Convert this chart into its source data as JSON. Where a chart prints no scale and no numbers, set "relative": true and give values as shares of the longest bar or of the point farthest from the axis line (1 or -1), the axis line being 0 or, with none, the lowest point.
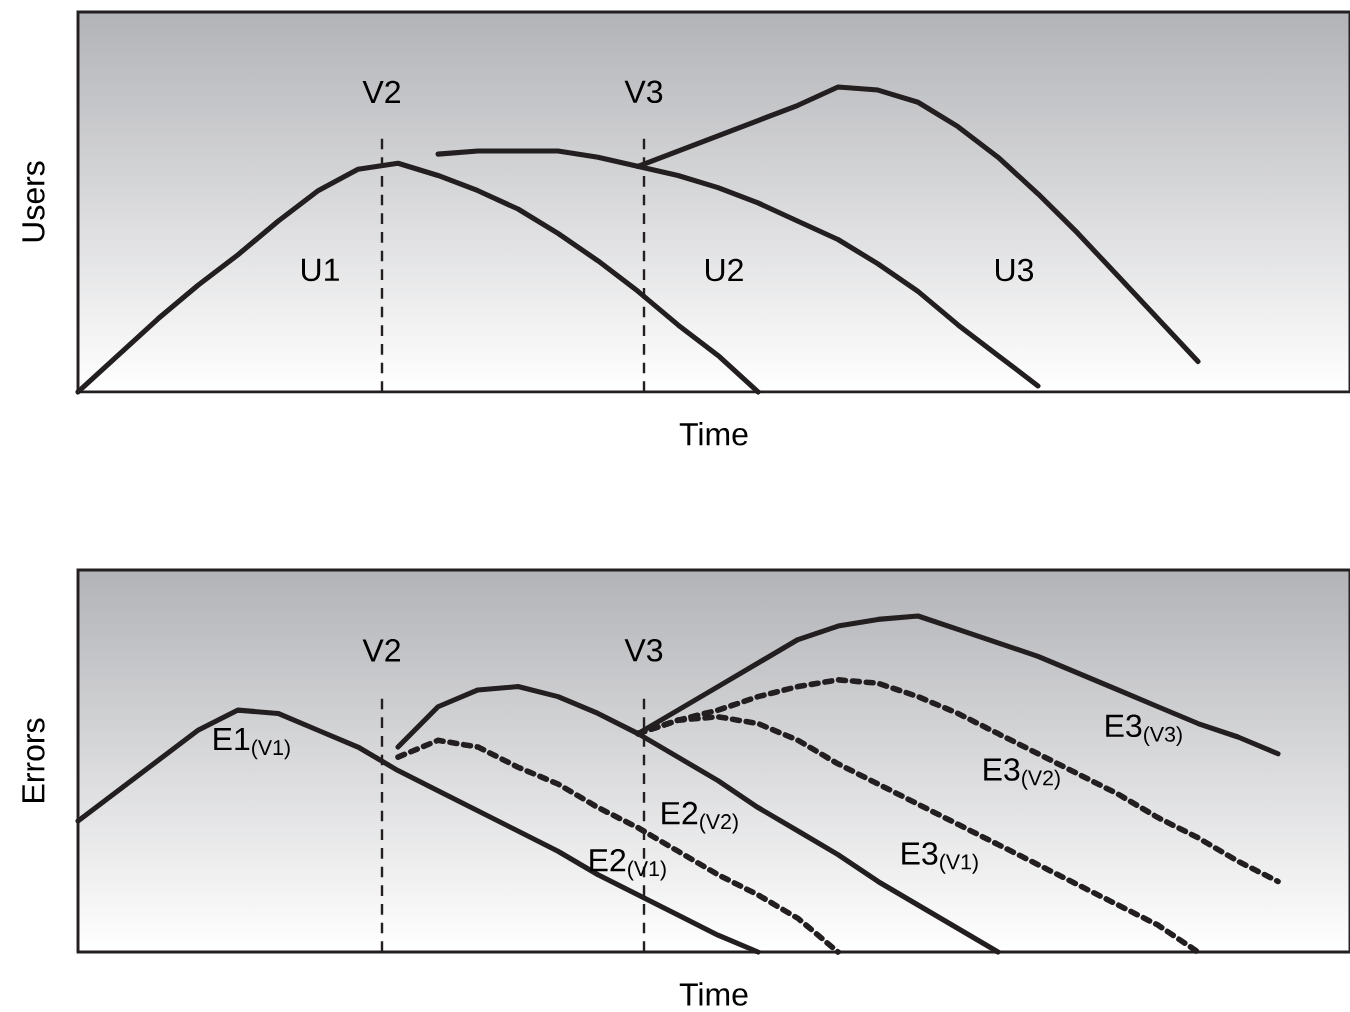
{
  "chart_data": [
    {
      "type": "line",
      "relative": true,
      "xlabel": "Time",
      "ylabel": "Users",
      "categories": [
        null,
        null,
        null,
        null,
        null,
        null,
        null,
        null,
        null,
        null,
        null,
        null,
        null,
        null,
        null,
        null,
        null,
        null,
        null,
        null,
        null,
        null,
        null,
        null,
        null,
        null,
        null,
        null,
        null,
        null,
        null,
        null
      ],
      "series": [
        {
          "name": "U1",
          "color": "#231f20",
          "line_style": "solid",
          "values": [
            0,
            0.12,
            0.24,
            0.35,
            0.45,
            0.56,
            0.66,
            0.73,
            0.75,
            0.71,
            0.66,
            0.6,
            0.52,
            0.43,
            0.33,
            0.22,
            0.12,
            0,
            null,
            null,
            null,
            null,
            null,
            null,
            null,
            null,
            null,
            null,
            null,
            null,
            null,
            null
          ]
        },
        {
          "name": "U2",
          "color": "#231f20",
          "line_style": "solid",
          "values": [
            null,
            null,
            null,
            null,
            null,
            null,
            null,
            null,
            null,
            0.78,
            0.79,
            0.79,
            0.79,
            0.77,
            0.74,
            0.71,
            0.67,
            0.62,
            0.56,
            0.5,
            0.42,
            0.33,
            0.22,
            0.12,
            0.02,
            null,
            null,
            null,
            null,
            null,
            null,
            null
          ]
        },
        {
          "name": "U3",
          "color": "#231f20",
          "line_style": "solid",
          "values": [
            null,
            null,
            null,
            null,
            null,
            null,
            null,
            null,
            null,
            null,
            null,
            null,
            null,
            null,
            0.74,
            0.79,
            0.84,
            0.89,
            0.94,
            1,
            0.99,
            0.95,
            0.87,
            0.77,
            0.65,
            0.52,
            0.38,
            0.24,
            0.1,
            null,
            null,
            null
          ]
        }
      ],
      "annotations": [
        "V2",
        "V3"
      ]
    },
    {
      "type": "line",
      "relative": true,
      "xlabel": "Time",
      "ylabel": "Errors",
      "categories": [
        null,
        null,
        null,
        null,
        null,
        null,
        null,
        null,
        null,
        null,
        null,
        null,
        null,
        null,
        null,
        null,
        null,
        null,
        null,
        null,
        null,
        null,
        null,
        null,
        null,
        null,
        null,
        null,
        null,
        null,
        null,
        null
      ],
      "series": [
        {
          "name": "E1$_{(V1)}$",
          "color": "#231f20",
          "line_style": "solid",
          "values": [
            0.39,
            0.48,
            0.57,
            0.66,
            0.72,
            0.71,
            0.66,
            0.61,
            0.54,
            0.48,
            0.42,
            0.36,
            0.3,
            0.23,
            0.17,
            0.11,
            0.05,
            0,
            null,
            null,
            null,
            null,
            null,
            null,
            null,
            null,
            null,
            null,
            null,
            null,
            null,
            null
          ]
        },
        {
          "name": "E2$_{(V1)}$",
          "color": "#231f20",
          "line_style": "dotted",
          "values": [
            null,
            null,
            null,
            null,
            null,
            null,
            null,
            null,
            0.58,
            0.63,
            0.61,
            0.55,
            0.5,
            0.43,
            0.37,
            0.3,
            0.23,
            0.17,
            0.1,
            0,
            null,
            null,
            null,
            null,
            null,
            null,
            null,
            null,
            null,
            null,
            null,
            null
          ]
        },
        {
          "name": "E2$_{(V2)}$",
          "color": "#231f20",
          "line_style": "solid",
          "values": [
            null,
            null,
            null,
            null,
            null,
            null,
            null,
            null,
            0.61,
            0.73,
            0.78,
            0.79,
            0.76,
            0.71,
            0.65,
            0.58,
            0.51,
            0.43,
            0.36,
            0.29,
            0.21,
            0.14,
            0.07,
            0,
            null,
            null,
            null,
            null,
            null,
            null,
            null,
            null
          ]
        },
        {
          "name": "E3$_{(V1)}$",
          "color": "#231f20",
          "line_style": "dotted",
          "values": [
            null,
            null,
            null,
            null,
            null,
            null,
            null,
            null,
            null,
            null,
            null,
            null,
            null,
            null,
            0.65,
            0.69,
            0.7,
            0.68,
            0.63,
            0.56,
            0.5,
            0.44,
            0.38,
            0.32,
            0.26,
            0.2,
            0.14,
            0.08,
            0,
            null,
            null,
            null
          ]
        },
        {
          "name": "E3$_{(V2)}$",
          "color": "#231f20",
          "line_style": "dotted",
          "values": [
            null,
            null,
            null,
            null,
            null,
            null,
            null,
            null,
            null,
            null,
            null,
            null,
            null,
            null,
            0.65,
            0.69,
            0.72,
            0.76,
            0.79,
            0.81,
            0.8,
            0.76,
            0.71,
            0.65,
            0.59,
            0.53,
            0.47,
            0.4,
            0.34,
            0.27,
            0.21,
            null
          ]
        },
        {
          "name": "E3$_{(V3)}$",
          "color": "#231f20",
          "line_style": "solid",
          "values": [
            null,
            null,
            null,
            null,
            null,
            null,
            null,
            null,
            null,
            null,
            null,
            null,
            null,
            null,
            0.65,
            0.72,
            0.79,
            0.86,
            0.93,
            0.97,
            0.99,
            1,
            0.96,
            0.92,
            0.88,
            0.83,
            0.78,
            0.73,
            0.68,
            0.64,
            0.59,
            null
          ]
        }
      ],
      "annotations": [
        "V2",
        "V3"
      ]
    }
  ]
}
